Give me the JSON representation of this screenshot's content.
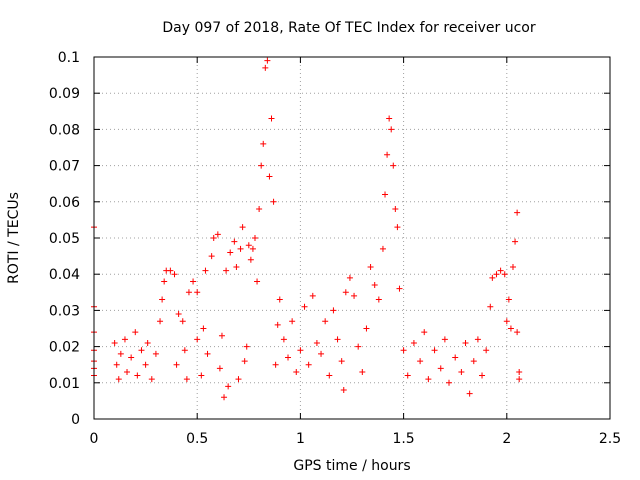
{
  "chart_data": {
    "type": "scatter",
    "title": "Day 097 of 2018, Rate Of TEC Index for receiver ucor",
    "xlabel": "GPS time / hours",
    "ylabel": "ROTI / TECUs",
    "xlim": [
      0,
      2.5
    ],
    "ylim": [
      0,
      0.1
    ],
    "x_ticks": [
      "0",
      "0.5",
      "1",
      "1.5",
      "2",
      "2.5"
    ],
    "y_ticks": [
      "0",
      "0.01",
      "0.02",
      "0.03",
      "0.04",
      "0.05",
      "0.06",
      "0.07",
      "0.08",
      "0.09",
      "0.1"
    ],
    "grid": true,
    "marker": "+",
    "color": "#ff0000",
    "series": [
      {
        "name": "ROTI",
        "points": [
          [
            0.0,
            0.053
          ],
          [
            0.0,
            0.031
          ],
          [
            0.0,
            0.024
          ],
          [
            0.0,
            0.019
          ],
          [
            0.0,
            0.016
          ],
          [
            0.0,
            0.014
          ],
          [
            0.0,
            0.012
          ],
          [
            0.1,
            0.021
          ],
          [
            0.11,
            0.015
          ],
          [
            0.12,
            0.011
          ],
          [
            0.13,
            0.018
          ],
          [
            0.15,
            0.022
          ],
          [
            0.16,
            0.013
          ],
          [
            0.18,
            0.017
          ],
          [
            0.2,
            0.024
          ],
          [
            0.21,
            0.012
          ],
          [
            0.23,
            0.019
          ],
          [
            0.25,
            0.015
          ],
          [
            0.26,
            0.021
          ],
          [
            0.28,
            0.011
          ],
          [
            0.3,
            0.018
          ],
          [
            0.32,
            0.027
          ],
          [
            0.33,
            0.033
          ],
          [
            0.34,
            0.038
          ],
          [
            0.35,
            0.041
          ],
          [
            0.37,
            0.041
          ],
          [
            0.39,
            0.04
          ],
          [
            0.4,
            0.015
          ],
          [
            0.41,
            0.029
          ],
          [
            0.43,
            0.027
          ],
          [
            0.44,
            0.019
          ],
          [
            0.45,
            0.011
          ],
          [
            0.46,
            0.035
          ],
          [
            0.48,
            0.038
          ],
          [
            0.5,
            0.035
          ],
          [
            0.5,
            0.022
          ],
          [
            0.52,
            0.012
          ],
          [
            0.53,
            0.025
          ],
          [
            0.54,
            0.041
          ],
          [
            0.55,
            0.018
          ],
          [
            0.57,
            0.045
          ],
          [
            0.58,
            0.05
          ],
          [
            0.6,
            0.051
          ],
          [
            0.61,
            0.014
          ],
          [
            0.62,
            0.023
          ],
          [
            0.63,
            0.006
          ],
          [
            0.64,
            0.041
          ],
          [
            0.65,
            0.009
          ],
          [
            0.66,
            0.046
          ],
          [
            0.68,
            0.049
          ],
          [
            0.69,
            0.042
          ],
          [
            0.7,
            0.011
          ],
          [
            0.71,
            0.047
          ],
          [
            0.72,
            0.053
          ],
          [
            0.73,
            0.016
          ],
          [
            0.74,
            0.02
          ],
          [
            0.75,
            0.048
          ],
          [
            0.76,
            0.044
          ],
          [
            0.77,
            0.047
          ],
          [
            0.78,
            0.05
          ],
          [
            0.79,
            0.038
          ],
          [
            0.8,
            0.058
          ],
          [
            0.81,
            0.07
          ],
          [
            0.82,
            0.076
          ],
          [
            0.83,
            0.097
          ],
          [
            0.84,
            0.099
          ],
          [
            0.85,
            0.067
          ],
          [
            0.86,
            0.083
          ],
          [
            0.87,
            0.06
          ],
          [
            0.88,
            0.015
          ],
          [
            0.89,
            0.026
          ],
          [
            0.9,
            0.033
          ],
          [
            0.92,
            0.022
          ],
          [
            0.94,
            0.017
          ],
          [
            0.96,
            0.027
          ],
          [
            0.98,
            0.013
          ],
          [
            1.0,
            0.019
          ],
          [
            1.02,
            0.031
          ],
          [
            1.04,
            0.015
          ],
          [
            1.06,
            0.034
          ],
          [
            1.08,
            0.021
          ],
          [
            1.1,
            0.018
          ],
          [
            1.12,
            0.027
          ],
          [
            1.14,
            0.012
          ],
          [
            1.16,
            0.03
          ],
          [
            1.18,
            0.022
          ],
          [
            1.2,
            0.016
          ],
          [
            1.21,
            0.008
          ],
          [
            1.22,
            0.035
          ],
          [
            1.24,
            0.039
          ],
          [
            1.26,
            0.034
          ],
          [
            1.28,
            0.02
          ],
          [
            1.3,
            0.013
          ],
          [
            1.32,
            0.025
          ],
          [
            1.34,
            0.042
          ],
          [
            1.36,
            0.037
          ],
          [
            1.38,
            0.033
          ],
          [
            1.4,
            0.047
          ],
          [
            1.41,
            0.062
          ],
          [
            1.42,
            0.073
          ],
          [
            1.43,
            0.083
          ],
          [
            1.44,
            0.08
          ],
          [
            1.45,
            0.07
          ],
          [
            1.46,
            0.058
          ],
          [
            1.47,
            0.053
          ],
          [
            1.48,
            0.036
          ],
          [
            1.5,
            0.019
          ],
          [
            1.52,
            0.012
          ],
          [
            1.55,
            0.021
          ],
          [
            1.58,
            0.016
          ],
          [
            1.6,
            0.024
          ],
          [
            1.62,
            0.011
          ],
          [
            1.65,
            0.019
          ],
          [
            1.68,
            0.014
          ],
          [
            1.7,
            0.022
          ],
          [
            1.72,
            0.01
          ],
          [
            1.75,
            0.017
          ],
          [
            1.78,
            0.013
          ],
          [
            1.8,
            0.021
          ],
          [
            1.82,
            0.007
          ],
          [
            1.84,
            0.016
          ],
          [
            1.86,
            0.022
          ],
          [
            1.88,
            0.012
          ],
          [
            1.9,
            0.019
          ],
          [
            1.92,
            0.031
          ],
          [
            1.93,
            0.039
          ],
          [
            1.95,
            0.04
          ],
          [
            1.97,
            0.041
          ],
          [
            1.99,
            0.04
          ],
          [
            2.0,
            0.027
          ],
          [
            2.01,
            0.033
          ],
          [
            2.02,
            0.025
          ],
          [
            2.03,
            0.042
          ],
          [
            2.04,
            0.049
          ],
          [
            2.05,
            0.057
          ],
          [
            2.05,
            0.024
          ],
          [
            2.06,
            0.013
          ],
          [
            2.06,
            0.011
          ]
        ]
      }
    ]
  }
}
